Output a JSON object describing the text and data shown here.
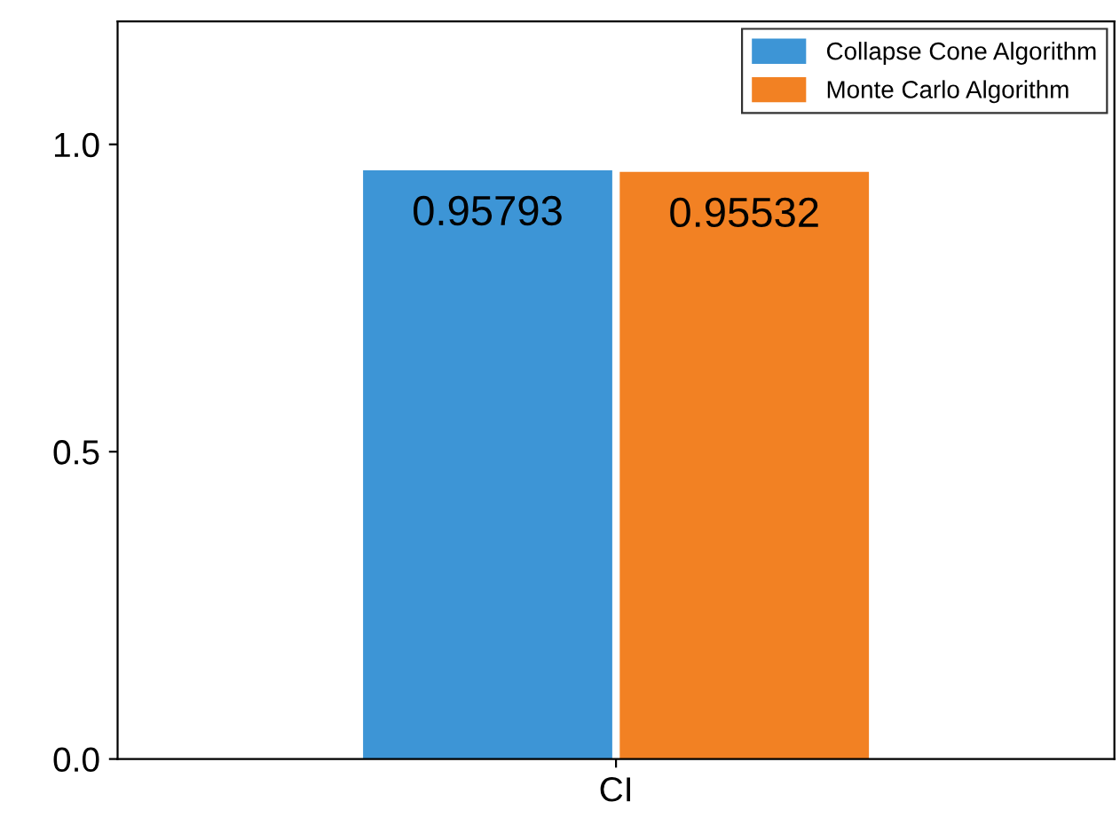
{
  "chart_data": {
    "type": "bar",
    "categories": [
      "CI"
    ],
    "series": [
      {
        "name": "Collapse Cone Algorithm",
        "color": "#3d95d6",
        "values": [
          0.95793
        ]
      },
      {
        "name": "Monte Carlo Algorithm",
        "color": "#f28123",
        "values": [
          0.95532
        ]
      }
    ],
    "ylim": [
      0,
      1.2
    ],
    "yticks": [
      {
        "value": 0,
        "label": "0.0"
      },
      {
        "value": 0.5,
        "label": "0.5"
      },
      {
        "value": 1.0,
        "label": "1.0"
      }
    ],
    "data_labels": true,
    "legend": "top right",
    "grid": false
  }
}
